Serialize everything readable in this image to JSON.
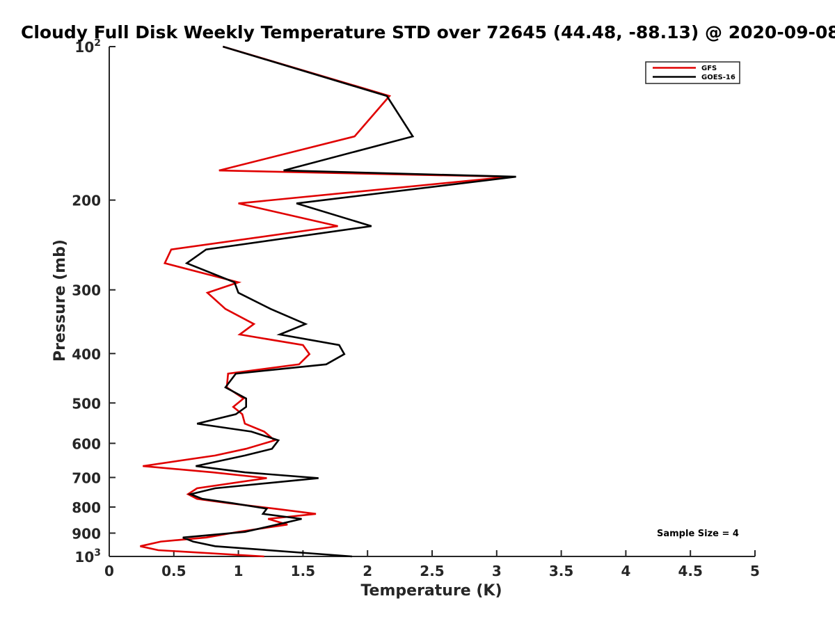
{
  "chart_data": {
    "type": "line",
    "title": "Cloudy Full Disk Weekly Temperature STD over 72645 (44.48, -88.13) @ 2020-09-08",
    "xlabel": "Temperature (K)",
    "ylabel": "Pressure (mb)",
    "xlim": [
      0,
      5
    ],
    "ylim": [
      100,
      1000
    ],
    "y_scale": "log",
    "y_reversed": true,
    "x_ticks": [
      {
        "value": 0,
        "label": "0"
      },
      {
        "value": 0.5,
        "label": "0.5"
      },
      {
        "value": 1,
        "label": "1"
      },
      {
        "value": 1.5,
        "label": "1.5"
      },
      {
        "value": 2,
        "label": "2"
      },
      {
        "value": 2.5,
        "label": "2.5"
      },
      {
        "value": 3,
        "label": "3"
      },
      {
        "value": 3.5,
        "label": "3.5"
      },
      {
        "value": 4,
        "label": "4"
      },
      {
        "value": 4.5,
        "label": "4.5"
      },
      {
        "value": 5,
        "label": "5"
      }
    ],
    "y_ticks": [
      {
        "value": 100,
        "label": "10",
        "exponent": "2"
      },
      {
        "value": 200,
        "label": "200"
      },
      {
        "value": 300,
        "label": "300"
      },
      {
        "value": 400,
        "label": "400"
      },
      {
        "value": 500,
        "label": "500"
      },
      {
        "value": 600,
        "label": "600"
      },
      {
        "value": 700,
        "label": "700"
      },
      {
        "value": 800,
        "label": "800"
      },
      {
        "value": 900,
        "label": "900"
      },
      {
        "value": 1000,
        "label": "10",
        "exponent": "3"
      }
    ],
    "grid": false,
    "legend_position": "top-right",
    "annotation": "Sample Size = 4",
    "series": [
      {
        "name": "GFS",
        "color": "#e00000",
        "points": [
          {
            "x": 0.88,
            "y": 100
          },
          {
            "x": 2.17,
            "y": 125
          },
          {
            "x": 1.9,
            "y": 150
          },
          {
            "x": 0.85,
            "y": 175
          },
          {
            "x": 3.1,
            "y": 180
          },
          {
            "x": 1.0,
            "y": 203
          },
          {
            "x": 1.77,
            "y": 225
          },
          {
            "x": 0.48,
            "y": 250
          },
          {
            "x": 0.43,
            "y": 266
          },
          {
            "x": 1.0,
            "y": 290
          },
          {
            "x": 0.76,
            "y": 304
          },
          {
            "x": 0.9,
            "y": 327
          },
          {
            "x": 1.12,
            "y": 350
          },
          {
            "x": 1.01,
            "y": 367
          },
          {
            "x": 1.5,
            "y": 385
          },
          {
            "x": 1.55,
            "y": 401
          },
          {
            "x": 1.47,
            "y": 420
          },
          {
            "x": 0.92,
            "y": 438
          },
          {
            "x": 0.91,
            "y": 466
          },
          {
            "x": 1.04,
            "y": 490
          },
          {
            "x": 0.96,
            "y": 509
          },
          {
            "x": 1.03,
            "y": 526
          },
          {
            "x": 1.05,
            "y": 549
          },
          {
            "x": 1.2,
            "y": 569
          },
          {
            "x": 1.28,
            "y": 592
          },
          {
            "x": 1.06,
            "y": 615
          },
          {
            "x": 0.82,
            "y": 634
          },
          {
            "x": 0.26,
            "y": 665
          },
          {
            "x": 0.8,
            "y": 684
          },
          {
            "x": 1.22,
            "y": 702
          },
          {
            "x": 0.68,
            "y": 735
          },
          {
            "x": 0.61,
            "y": 755
          },
          {
            "x": 0.68,
            "y": 771
          },
          {
            "x": 0.92,
            "y": 786
          },
          {
            "x": 1.28,
            "y": 806
          },
          {
            "x": 1.6,
            "y": 825
          },
          {
            "x": 1.23,
            "y": 844
          },
          {
            "x": 1.38,
            "y": 866
          },
          {
            "x": 1.0,
            "y": 895
          },
          {
            "x": 0.75,
            "y": 918
          },
          {
            "x": 0.4,
            "y": 935
          },
          {
            "x": 0.24,
            "y": 955
          },
          {
            "x": 0.38,
            "y": 972
          },
          {
            "x": 1.2,
            "y": 1000
          }
        ]
      },
      {
        "name": "GOES-16",
        "color": "#000000",
        "points": [
          {
            "x": 0.88,
            "y": 100
          },
          {
            "x": 2.15,
            "y": 125
          },
          {
            "x": 2.35,
            "y": 150
          },
          {
            "x": 1.35,
            "y": 175
          },
          {
            "x": 3.15,
            "y": 180
          },
          {
            "x": 1.45,
            "y": 203
          },
          {
            "x": 2.03,
            "y": 225
          },
          {
            "x": 0.75,
            "y": 250
          },
          {
            "x": 0.6,
            "y": 266
          },
          {
            "x": 0.97,
            "y": 290
          },
          {
            "x": 1.0,
            "y": 304
          },
          {
            "x": 1.25,
            "y": 327
          },
          {
            "x": 1.52,
            "y": 350
          },
          {
            "x": 1.32,
            "y": 367
          },
          {
            "x": 1.78,
            "y": 385
          },
          {
            "x": 1.82,
            "y": 401
          },
          {
            "x": 1.68,
            "y": 420
          },
          {
            "x": 0.98,
            "y": 438
          },
          {
            "x": 0.9,
            "y": 466
          },
          {
            "x": 1.06,
            "y": 490
          },
          {
            "x": 1.06,
            "y": 509
          },
          {
            "x": 0.98,
            "y": 526
          },
          {
            "x": 0.68,
            "y": 549
          },
          {
            "x": 1.1,
            "y": 569
          },
          {
            "x": 1.31,
            "y": 592
          },
          {
            "x": 1.26,
            "y": 615
          },
          {
            "x": 1.05,
            "y": 634
          },
          {
            "x": 0.67,
            "y": 665
          },
          {
            "x": 1.05,
            "y": 684
          },
          {
            "x": 1.62,
            "y": 702
          },
          {
            "x": 0.82,
            "y": 735
          },
          {
            "x": 0.63,
            "y": 755
          },
          {
            "x": 0.72,
            "y": 771
          },
          {
            "x": 0.95,
            "y": 786
          },
          {
            "x": 1.22,
            "y": 806
          },
          {
            "x": 1.19,
            "y": 825
          },
          {
            "x": 1.49,
            "y": 844
          },
          {
            "x": 1.3,
            "y": 866
          },
          {
            "x": 1.05,
            "y": 895
          },
          {
            "x": 0.57,
            "y": 918
          },
          {
            "x": 0.65,
            "y": 935
          },
          {
            "x": 0.82,
            "y": 955
          },
          {
            "x": 1.88,
            "y": 1000
          }
        ]
      }
    ]
  }
}
